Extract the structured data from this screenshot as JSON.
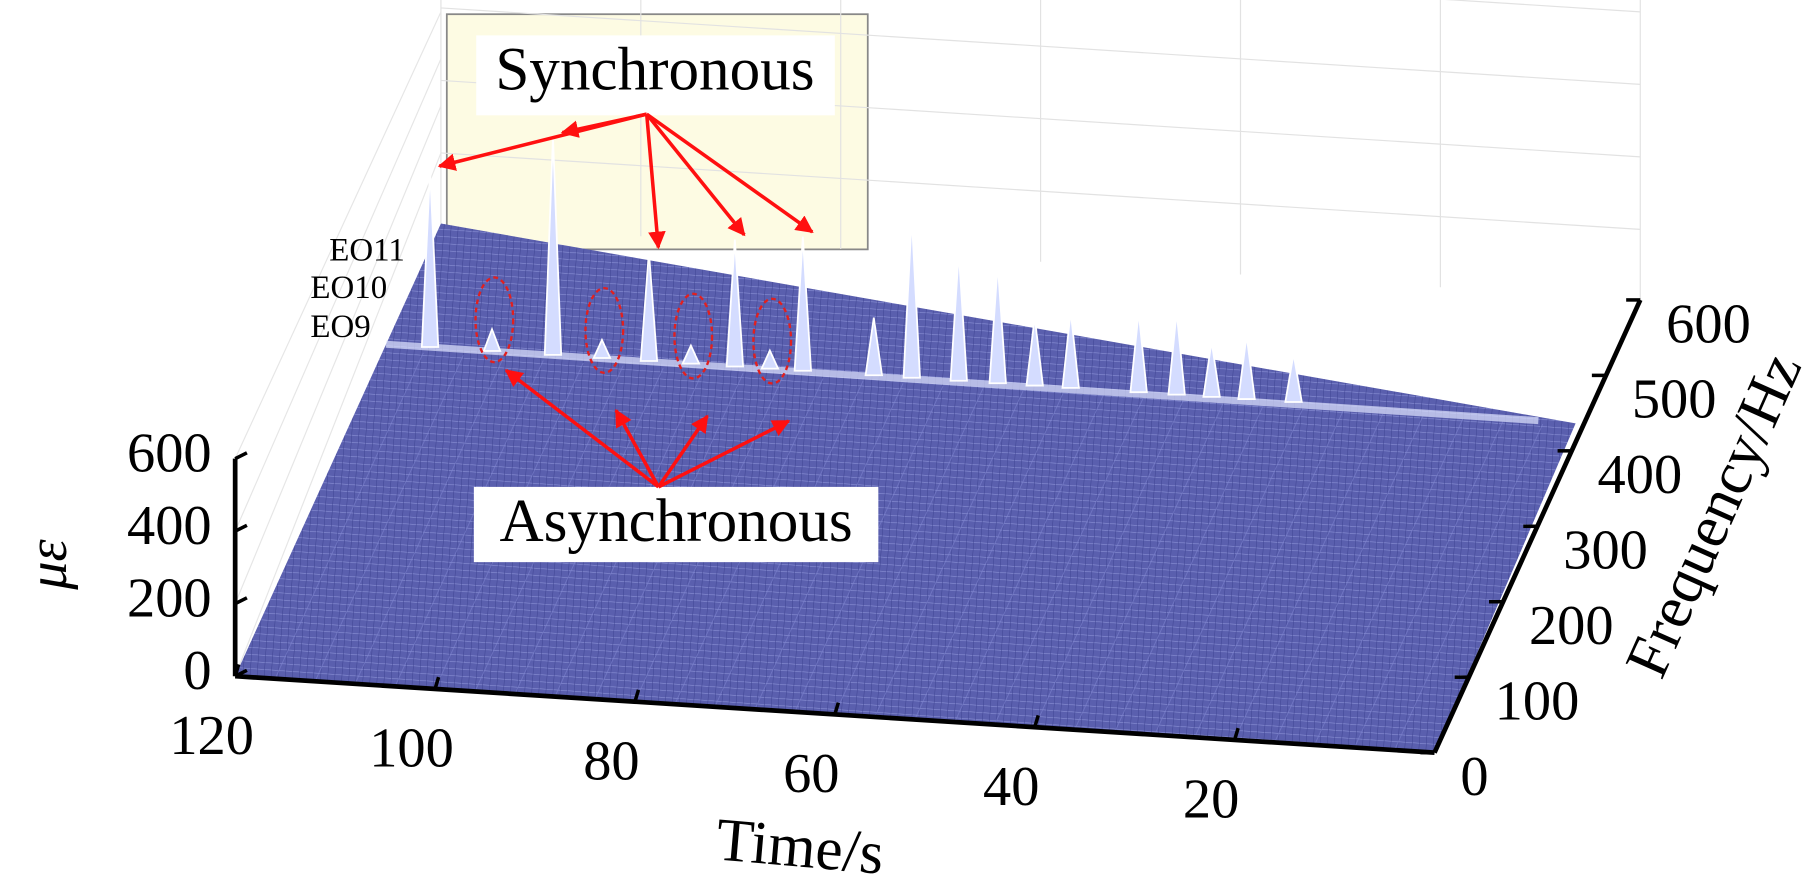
{
  "chart_data": {
    "type": "waterfall3d",
    "xlabel": "Time/s",
    "ylabel": "Frequency/Hz",
    "zlabel": "με",
    "xlim": [
      0,
      120
    ],
    "xticks": [
      20,
      40,
      60,
      80,
      100,
      120
    ],
    "ylim": [
      0,
      600
    ],
    "yticks": [
      0,
      100,
      200,
      300,
      400,
      500,
      600
    ],
    "zlim": [
      0,
      600
    ],
    "zticks": [
      0,
      200,
      400,
      600
    ],
    "color": "#5a5fae",
    "peaks": {
      "time": [
        115.6,
        103.3,
        93.7,
        85.1,
        78.3,
        109.4,
        98.4,
        89.5,
        81.6,
        71.2,
        67.4,
        62.7,
        58.8,
        55.1,
        51.5,
        44.7,
        40.9,
        37.4,
        33.9,
        29.2
      ],
      "frequency": [
        440,
        440,
        440,
        440,
        440,
        440,
        440,
        440,
        440,
        440,
        440,
        440,
        440,
        440,
        440,
        440,
        440,
        440,
        440,
        440
      ],
      "values": [
        486,
        600,
        300,
        350,
        370,
        60,
        50,
        50,
        50,
        159,
        441,
        354,
        328,
        188,
        211,
        221,
        227,
        152,
        175,
        133
      ]
    },
    "annotations": {
      "synchronous": "Synchronous",
      "asynchronous": "Asynchronous",
      "orders": [
        "EO11",
        "EO10",
        "EO9"
      ]
    }
  }
}
